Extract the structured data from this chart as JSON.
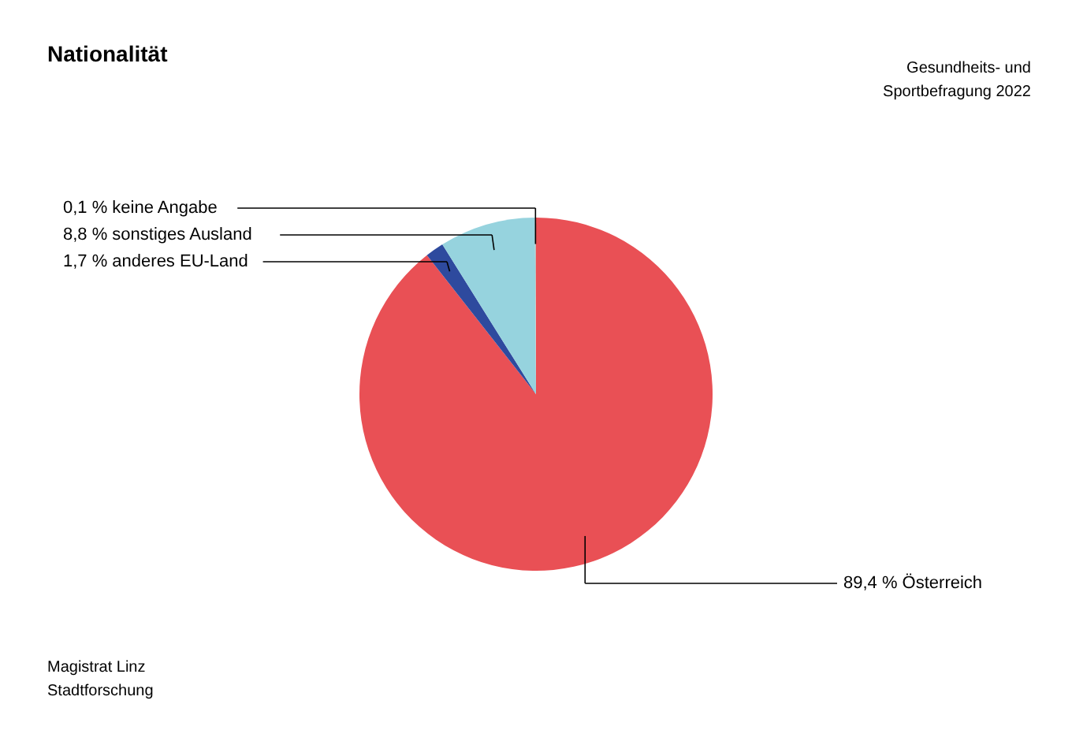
{
  "chart_data": {
    "type": "pie",
    "title": "Nationalität",
    "subtitle": "Gesundheits- und\nSportbefragung 2022",
    "categories": [
      "Österreich",
      "anderes EU-Land",
      "sonstiges Ausland",
      "keine Angabe"
    ],
    "values": [
      89.4,
      1.7,
      8.8,
      0.1
    ],
    "value_labels": [
      "89,4 %",
      "1,7 %",
      "8,8 %",
      "0,1 %"
    ],
    "colors": [
      "#e95055",
      "#2e4a9e",
      "#96d3de",
      "#bfbfbf"
    ],
    "annotations": [
      "Magistrat Linz\nStadtforschung"
    ]
  }
}
